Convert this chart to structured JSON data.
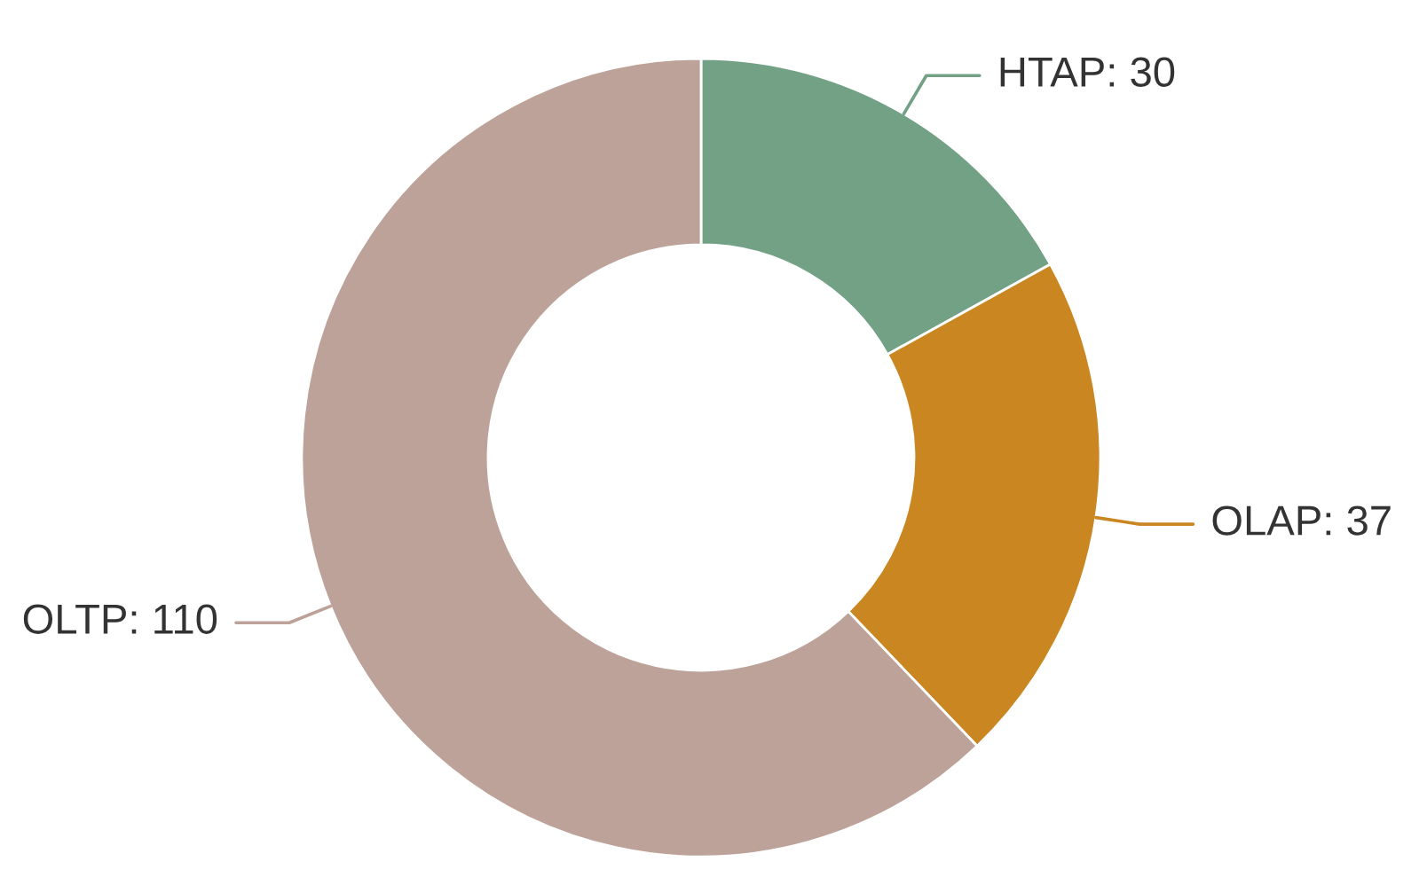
{
  "chart_data": {
    "type": "donut",
    "categories": [
      "HTAP: 30",
      "OLAP: 37",
      "OLTP: 110"
    ],
    "values": [
      30,
      37,
      110
    ],
    "colors": [
      "#73a185",
      "#c98621",
      "#bda29a"
    ]
  }
}
